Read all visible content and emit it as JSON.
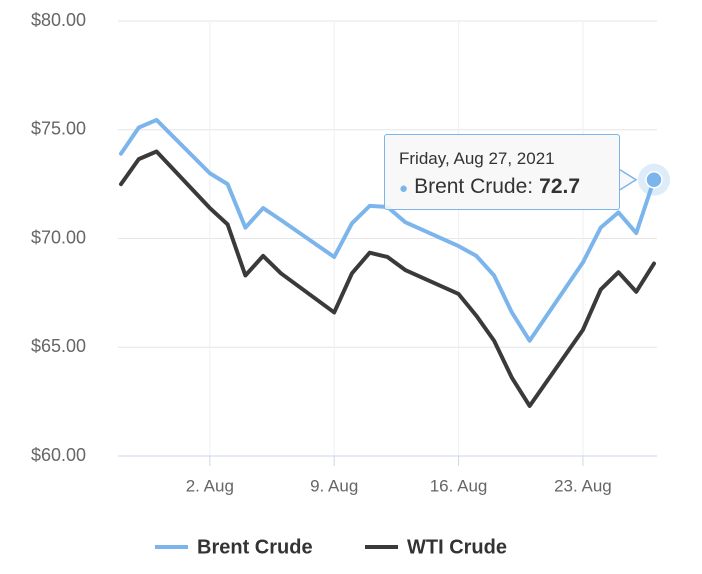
{
  "chart_data": {
    "type": "line",
    "x": [
      "2021-07-28",
      "2021-07-29",
      "2021-07-30",
      "2021-08-02",
      "2021-08-03",
      "2021-08-04",
      "2021-08-05",
      "2021-08-06",
      "2021-08-09",
      "2021-08-10",
      "2021-08-11",
      "2021-08-12",
      "2021-08-13",
      "2021-08-16",
      "2021-08-17",
      "2021-08-18",
      "2021-08-19",
      "2021-08-20",
      "2021-08-23",
      "2021-08-24",
      "2021-08-25",
      "2021-08-26",
      "2021-08-27"
    ],
    "series": [
      {
        "name": "Brent Crude",
        "color": "#7cb5ec",
        "values": [
          73.9,
          75.1,
          75.45,
          73.0,
          72.5,
          70.5,
          71.4,
          70.85,
          69.15,
          70.7,
          71.5,
          71.45,
          70.75,
          69.65,
          69.2,
          68.3,
          66.6,
          65.3,
          68.9,
          70.5,
          71.2,
          70.25,
          72.7
        ]
      },
      {
        "name": "WTI Crude",
        "color": "#3a3a3a",
        "values": [
          72.5,
          73.65,
          74.0,
          71.4,
          70.65,
          68.3,
          69.2,
          68.4,
          66.6,
          68.4,
          69.35,
          69.15,
          68.55,
          67.45,
          66.45,
          65.3,
          63.6,
          62.3,
          65.8,
          67.65,
          68.45,
          67.55,
          68.85
        ]
      }
    ],
    "xlim": [
      "2021-07-28",
      "2021-08-27"
    ],
    "xticks": [
      {
        "value": "2021-08-02",
        "label": "2. Aug"
      },
      {
        "value": "2021-08-09",
        "label": "9. Aug"
      },
      {
        "value": "2021-08-16",
        "label": "16. Aug"
      },
      {
        "value": "2021-08-23",
        "label": "23. Aug"
      }
    ],
    "ylim": [
      60,
      80
    ],
    "yticks": [
      {
        "value": 60,
        "label": "$60.00"
      },
      {
        "value": 65,
        "label": "$65.00"
      },
      {
        "value": 70,
        "label": "$70.00"
      },
      {
        "value": 75,
        "label": "$75.00"
      },
      {
        "value": 80,
        "label": "$80.00"
      }
    ],
    "grid": true,
    "legend": "bottom",
    "tooltip": {
      "header": "Friday, Aug 27, 2021",
      "series": 0,
      "index": 22
    }
  }
}
